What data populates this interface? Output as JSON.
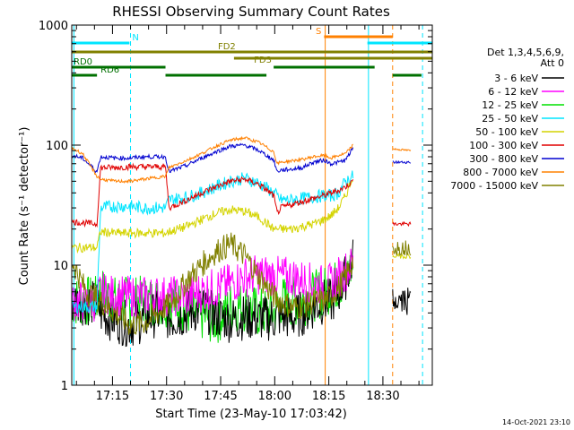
{
  "chart_data": {
    "type": "line",
    "title": "RHESSI Observing Summary Count Rates",
    "xlabel": "Start Time (23-May-10 17:03:42)",
    "ylabel": "Count Rate (s⁻¹ detector⁻¹)",
    "yscale": "log",
    "ylim": [
      1,
      1000
    ],
    "xlim_minutes_after_start": [
      0,
      100
    ],
    "y_tick_labels": [
      "1",
      "10",
      "100",
      "1000"
    ],
    "x_tick_labels": [
      "17:15",
      "17:30",
      "17:45",
      "18:00",
      "18:15",
      "18:30"
    ],
    "x_tick_minutes": [
      11.3,
      26.3,
      41.3,
      56.3,
      71.3,
      86.3
    ],
    "legend": {
      "header": [
        "Det 1,3,4,5,6,9,",
        "Att 0"
      ],
      "placement": "right",
      "entries": [
        {
          "label": "3 - 6 keV",
          "color": "#000000"
        },
        {
          "label": "6 - 12 keV",
          "color": "#ff00ff"
        },
        {
          "label": "12 - 25 keV",
          "color": "#00e000"
        },
        {
          "label": "25 - 50 keV",
          "color": "#00e5ff"
        },
        {
          "label": "50 - 100 keV",
          "color": "#d4d400"
        },
        {
          "label": "100 - 300 keV",
          "color": "#e00000"
        },
        {
          "label": "300 - 800 keV",
          "color": "#0000d0"
        },
        {
          "label": "800 - 7000 keV",
          "color": "#ff8000"
        },
        {
          "label": "7000 - 15000 keV",
          "color": "#808000"
        }
      ]
    },
    "series": [
      {
        "name": "3 - 6 keV",
        "points": [
          [
            0,
            5
          ],
          [
            7,
            4.8
          ],
          [
            8,
            4
          ],
          [
            12,
            3.5
          ],
          [
            16,
            3.2
          ],
          [
            20,
            3.5
          ],
          [
            24,
            4
          ],
          [
            28,
            3.6
          ],
          [
            32,
            4
          ],
          [
            36,
            4.4
          ],
          [
            40,
            3.8
          ],
          [
            44,
            3.5
          ],
          [
            48,
            3.7
          ],
          [
            52,
            3.6
          ],
          [
            56,
            3.6
          ],
          [
            58,
            3.8
          ],
          [
            61,
            3.6
          ],
          [
            64,
            4
          ],
          [
            67,
            4.5
          ],
          [
            70,
            5
          ],
          [
            72,
            5
          ],
          [
            74,
            6
          ],
          [
            76,
            8
          ],
          [
            78,
            11
          ]
        ]
      },
      {
        "name": "6 - 12 keV",
        "points": [
          [
            0,
            5
          ],
          [
            7,
            5
          ],
          [
            8,
            6
          ],
          [
            12,
            5.5
          ],
          [
            16,
            5.5
          ],
          [
            20,
            5.5
          ],
          [
            24,
            5.6
          ],
          [
            28,
            5.5
          ],
          [
            32,
            5.5
          ],
          [
            36,
            6
          ],
          [
            40,
            6.5
          ],
          [
            44,
            7
          ],
          [
            48,
            8
          ],
          [
            52,
            8.4
          ],
          [
            56,
            8.2
          ],
          [
            58,
            8
          ],
          [
            61,
            8
          ],
          [
            64,
            7.5
          ],
          [
            67,
            7
          ],
          [
            70,
            6.8
          ],
          [
            72,
            7
          ],
          [
            74,
            8
          ],
          [
            76,
            9
          ],
          [
            78,
            10
          ]
        ]
      },
      {
        "name": "12 - 25 keV",
        "points": [
          [
            0,
            5
          ],
          [
            7,
            5
          ],
          [
            8,
            6
          ],
          [
            12,
            5
          ],
          [
            16,
            5
          ],
          [
            20,
            5
          ],
          [
            24,
            5
          ],
          [
            28,
            5
          ],
          [
            32,
            4.2
          ],
          [
            36,
            3.8
          ],
          [
            40,
            3.5
          ],
          [
            44,
            4.5
          ],
          [
            48,
            4.5
          ],
          [
            52,
            4
          ],
          [
            56,
            4
          ],
          [
            58,
            5
          ],
          [
            61,
            5
          ],
          [
            64,
            5
          ],
          [
            67,
            5.5
          ],
          [
            70,
            6
          ],
          [
            72,
            6.5
          ],
          [
            74,
            7
          ],
          [
            76,
            8
          ],
          [
            78,
            10
          ]
        ]
      },
      {
        "name": "25 - 50 keV",
        "points": [
          [
            0,
            4.5
          ],
          [
            7,
            4.5
          ],
          [
            8,
            30
          ],
          [
            12,
            31
          ],
          [
            16,
            31
          ],
          [
            20,
            30
          ],
          [
            24,
            30
          ],
          [
            26,
            30
          ],
          [
            27,
            35
          ],
          [
            32,
            37
          ],
          [
            36,
            40
          ],
          [
            40,
            45
          ],
          [
            44,
            50
          ],
          [
            48,
            53
          ],
          [
            52,
            48
          ],
          [
            56,
            40
          ],
          [
            58,
            35
          ],
          [
            61,
            35
          ],
          [
            64,
            36
          ],
          [
            67,
            37
          ],
          [
            70,
            38
          ],
          [
            72,
            38
          ],
          [
            74,
            40
          ],
          [
            76,
            50
          ],
          [
            78,
            55
          ]
        ]
      },
      {
        "name": "50 - 100 keV",
        "points": [
          [
            0,
            14
          ],
          [
            7,
            14
          ],
          [
            8,
            19
          ],
          [
            12,
            18.5
          ],
          [
            16,
            18.5
          ],
          [
            20,
            18.5
          ],
          [
            24,
            18.5
          ],
          [
            26,
            18.5
          ],
          [
            27,
            19
          ],
          [
            32,
            21
          ],
          [
            36,
            24
          ],
          [
            40,
            27
          ],
          [
            44,
            29
          ],
          [
            48,
            28
          ],
          [
            52,
            25
          ],
          [
            56,
            20
          ],
          [
            58,
            20
          ],
          [
            61,
            20
          ],
          [
            64,
            21
          ],
          [
            67,
            22
          ],
          [
            70,
            24
          ],
          [
            72,
            26
          ],
          [
            74,
            30
          ],
          [
            76,
            38
          ],
          [
            78,
            55
          ]
        ]
      },
      {
        "name": "100 - 300 keV",
        "points": [
          [
            0,
            23
          ],
          [
            7,
            22
          ],
          [
            8,
            65
          ],
          [
            12,
            65
          ],
          [
            16,
            66
          ],
          [
            20,
            66
          ],
          [
            24,
            66
          ],
          [
            26,
            66
          ],
          [
            27,
            30
          ],
          [
            32,
            35
          ],
          [
            36,
            40
          ],
          [
            40,
            45
          ],
          [
            44,
            50
          ],
          [
            48,
            52
          ],
          [
            52,
            47
          ],
          [
            56,
            38
          ],
          [
            57,
            27
          ],
          [
            58,
            30
          ],
          [
            61,
            32
          ],
          [
            64,
            34
          ],
          [
            67,
            36
          ],
          [
            70,
            38
          ],
          [
            72,
            40
          ],
          [
            74,
            42
          ],
          [
            76,
            45
          ],
          [
            78,
            50
          ]
        ]
      },
      {
        "name": "300 - 800 keV",
        "points": [
          [
            0,
            82
          ],
          [
            3,
            78
          ],
          [
            7,
            60
          ],
          [
            8,
            80
          ],
          [
            12,
            78
          ],
          [
            16,
            78
          ],
          [
            20,
            80
          ],
          [
            24,
            80
          ],
          [
            26,
            80
          ],
          [
            27,
            60
          ],
          [
            32,
            68
          ],
          [
            36,
            78
          ],
          [
            40,
            88
          ],
          [
            44,
            98
          ],
          [
            48,
            100
          ],
          [
            52,
            90
          ],
          [
            56,
            75
          ],
          [
            57,
            60
          ],
          [
            58,
            62
          ],
          [
            61,
            63
          ],
          [
            64,
            65
          ],
          [
            67,
            72
          ],
          [
            70,
            75
          ],
          [
            72,
            70
          ],
          [
            74,
            72
          ],
          [
            76,
            75
          ],
          [
            78,
            95
          ]
        ]
      },
      {
        "name": "800 - 7000 keV",
        "points": [
          [
            0,
            95
          ],
          [
            3,
            85
          ],
          [
            7,
            55
          ],
          [
            8,
            52
          ],
          [
            12,
            50
          ],
          [
            16,
            50
          ],
          [
            20,
            52
          ],
          [
            24,
            54
          ],
          [
            26,
            55
          ],
          [
            27,
            65
          ],
          [
            32,
            75
          ],
          [
            36,
            85
          ],
          [
            40,
            98
          ],
          [
            44,
            110
          ],
          [
            48,
            115
          ],
          [
            52,
            105
          ],
          [
            56,
            88
          ],
          [
            57,
            70
          ],
          [
            58,
            72
          ],
          [
            61,
            74
          ],
          [
            64,
            76
          ],
          [
            67,
            80
          ],
          [
            70,
            82
          ],
          [
            72,
            78
          ],
          [
            74,
            82
          ],
          [
            76,
            85
          ],
          [
            78,
            100
          ]
        ]
      },
      {
        "name": "7000 - 15000 keV",
        "points": [
          [
            0,
            11
          ],
          [
            4,
            6
          ],
          [
            8,
            5
          ],
          [
            12,
            4
          ],
          [
            16,
            3.2
          ],
          [
            20,
            3.3
          ],
          [
            24,
            4
          ],
          [
            28,
            5
          ],
          [
            32,
            7.5
          ],
          [
            36,
            10
          ],
          [
            40,
            13
          ],
          [
            44,
            15
          ],
          [
            48,
            12
          ],
          [
            52,
            8
          ],
          [
            56,
            5.5
          ],
          [
            58,
            5
          ],
          [
            61,
            4.5
          ],
          [
            64,
            4.5
          ],
          [
            67,
            5
          ],
          [
            70,
            5
          ],
          [
            72,
            5.5
          ],
          [
            74,
            6.5
          ],
          [
            76,
            8
          ],
          [
            78,
            11
          ]
        ]
      }
    ],
    "series_after_gap": [
      {
        "name": "3 - 6 keV",
        "points": [
          [
            89,
            5
          ],
          [
            94,
            5
          ]
        ]
      },
      {
        "name": "50 - 100 keV",
        "points": [
          [
            89,
            12
          ],
          [
            94,
            12
          ]
        ]
      },
      {
        "name": "100 - 300 keV",
        "points": [
          [
            89,
            22
          ],
          [
            94,
            22
          ]
        ]
      },
      {
        "name": "300 - 800 keV",
        "points": [
          [
            89,
            72
          ],
          [
            94,
            72
          ]
        ]
      },
      {
        "name": "800 - 7000 keV",
        "points": [
          [
            89,
            93
          ],
          [
            94,
            90
          ]
        ]
      },
      {
        "name": "7000 - 15000 keV",
        "points": [
          [
            89,
            14
          ],
          [
            94,
            14
          ]
        ]
      }
    ],
    "annotations": {
      "bars": [
        {
          "label": "N",
          "color": "#00e5ff",
          "segments": [
            [
              0,
              16
            ],
            [
              82,
              100
            ]
          ]
        },
        {
          "label": "S",
          "color": "#ff8000",
          "segments": [
            [
              70,
              89
            ]
          ]
        },
        {
          "label": "FD2",
          "color": "#808000",
          "segments": [
            [
              0,
              100
            ]
          ]
        },
        {
          "label": "FD3",
          "color": "#808000",
          "segments": [
            [
              45,
              100
            ]
          ]
        },
        {
          "label": "RD0",
          "color": "#007000",
          "segments": [
            [
              0,
              26
            ],
            [
              56,
              84
            ]
          ]
        },
        {
          "label": "RD6",
          "color": "#007000",
          "segments": [
            [
              0,
              7
            ],
            [
              26,
              54
            ],
            [
              89,
              97
            ]
          ]
        }
      ],
      "solid_lines": [
        {
          "x": 0.6,
          "color": "#00e5ff"
        },
        {
          "x": 70.3,
          "color": "#ff8000"
        },
        {
          "x": 82.3,
          "color": "#00e5ff"
        }
      ],
      "dashed_lines": [
        {
          "x": 16.3,
          "color": "#00e5ff"
        },
        {
          "x": 89.0,
          "color": "#ff8000"
        },
        {
          "x": 97.3,
          "color": "#00e5ff"
        }
      ]
    }
  },
  "footer": {
    "timestamp": "14-Oct-2021 23:10"
  }
}
